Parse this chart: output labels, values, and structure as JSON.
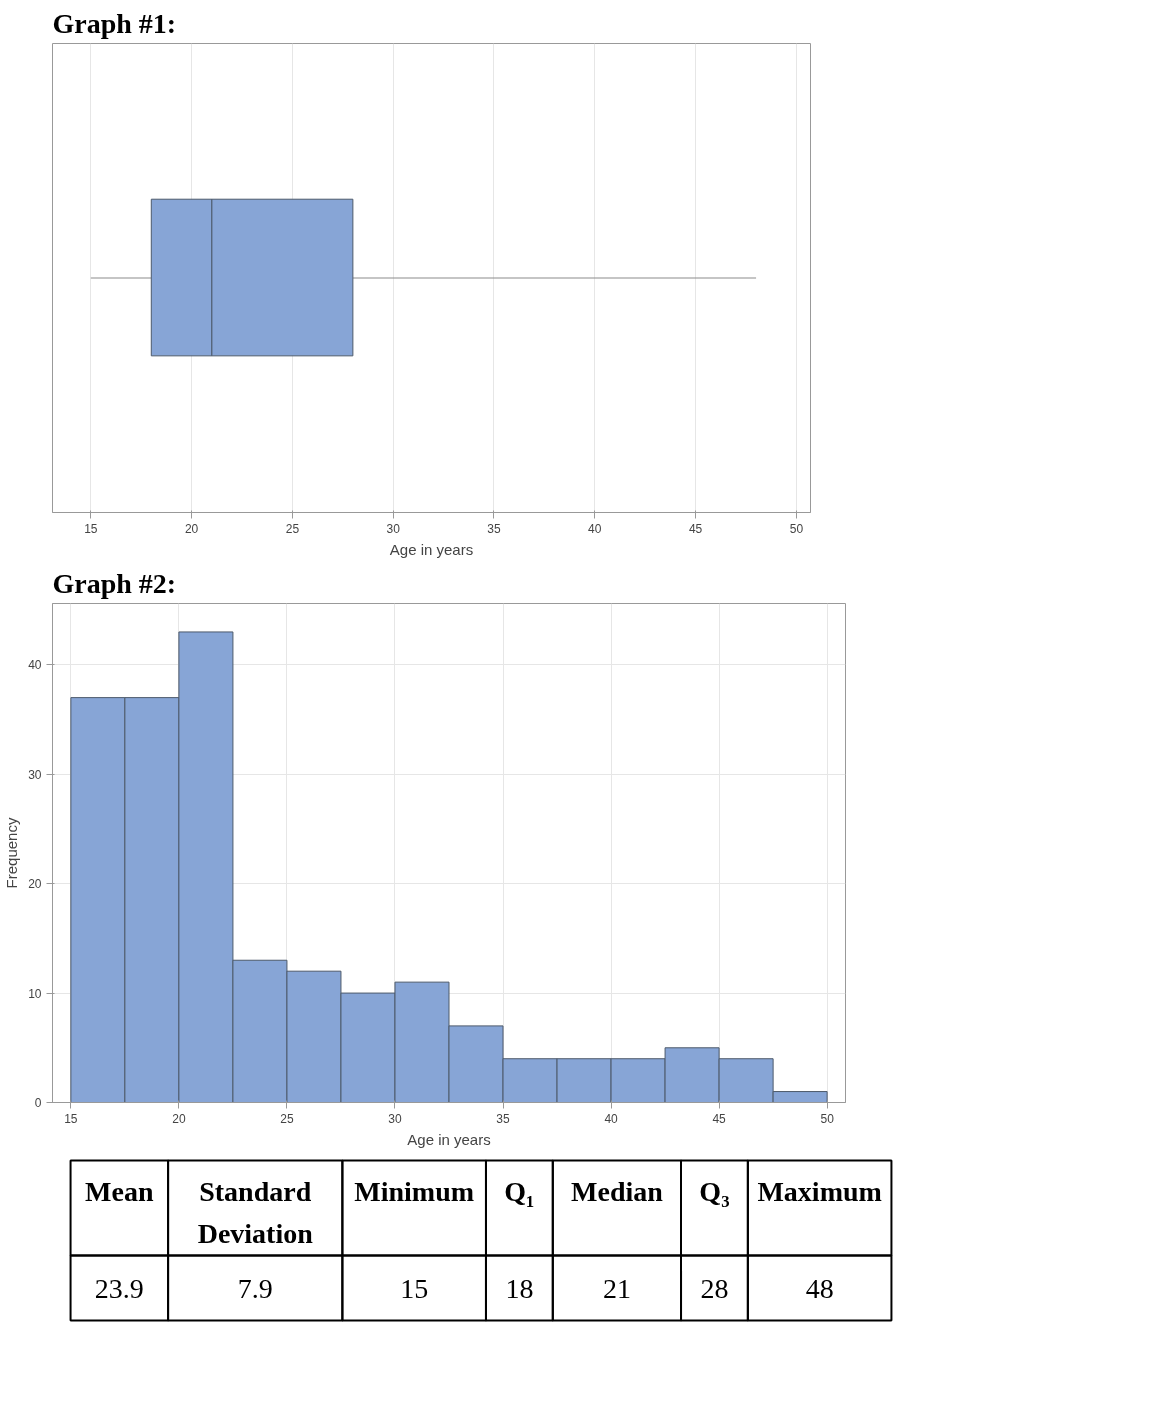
{
  "chart_data": [
    {
      "type": "box",
      "title": "Graph #1:",
      "xlabel": "Age in years",
      "categories": [
        null
      ],
      "boxes": [
        {
          "low": 15,
          "q1": 18,
          "median": 21,
          "q3": 28,
          "high": 48
        }
      ],
      "orientation": "horizontal",
      "color": "#87a5d6",
      "xlim": [
        13.1,
        50.7
      ],
      "xticks": [
        15,
        20,
        25,
        30,
        35,
        40,
        45,
        50
      ],
      "grid": "x",
      "tick_labels": "x"
    },
    {
      "type": "histogram",
      "title": "Graph #2:",
      "xlabel": "Age in years",
      "ylabel": "Frequency",
      "bins": [
        15,
        17.5,
        20,
        22.5,
        25,
        27.5,
        30,
        32.5,
        35,
        37.5,
        40,
        42.5,
        45,
        47.5,
        50
      ],
      "values": [
        37,
        37,
        43,
        13,
        12,
        10,
        11,
        7,
        4,
        4,
        4,
        5,
        4,
        1
      ],
      "color": "#87a5d6",
      "xlim": [
        14.15,
        50.85
      ],
      "ylim": [
        0,
        45.6
      ],
      "xticks": [
        15,
        20,
        25,
        30,
        35,
        40,
        45,
        50
      ],
      "yticks": [
        0,
        10,
        20,
        30,
        40
      ],
      "grid": true
    },
    {
      "type": "other",
      "categories": [
        "Mean",
        "Standard Deviation",
        "Minimum",
        "Q₁",
        "Median",
        "Q₃",
        "Maximum"
      ],
      "values": [
        23.9,
        7.9,
        15,
        18,
        21,
        28,
        48
      ],
      "data_labels": true
    }
  ]
}
